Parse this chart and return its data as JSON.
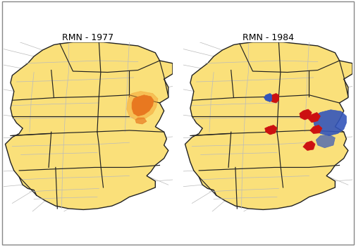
{
  "title_left": "RMN - 1977",
  "title_right": "RMN - 1984",
  "bg_color": "#ffffff",
  "map_bg": "#f0f0f0",
  "region_fill": "#FAE07A",
  "region_edge": "#222222",
  "road_color": "#bbbbbb",
  "border_color": "#222222",
  "highlight_orange": "#E87820",
  "highlight_orange2": "#F5A030",
  "highlight_red77": "#BB2200",
  "highlight_red84": "#CC1111",
  "highlight_blue84": "#3355BB",
  "title_fontsize": 9,
  "fig_width": 5.05,
  "fig_height": 3.49,
  "dpi": 100
}
